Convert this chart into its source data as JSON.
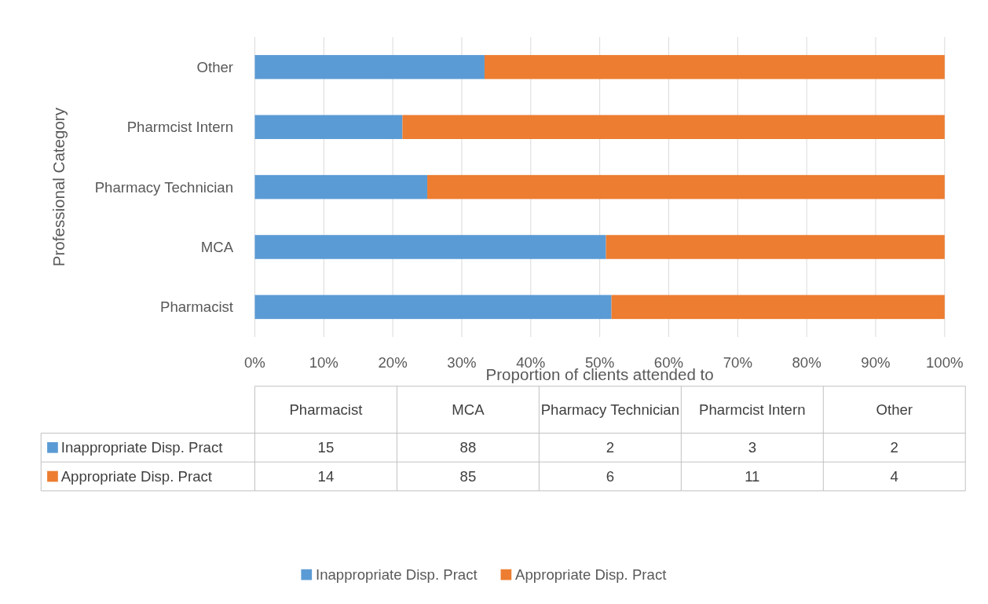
{
  "chart_data": [
    {
      "type": "bar",
      "orientation": "horizontal",
      "stacked": true,
      "ylabel": "Professional Category",
      "xlabel": "Proportion of clients attended to",
      "categories": [
        "Other",
        "Pharmcist Intern",
        "Pharmacy Technician",
        "MCA",
        "Pharmacist"
      ],
      "series": [
        {
          "name": "Inappropriate Disp. Pract",
          "color": "#5b9bd5",
          "values": [
            33.3,
            21.4,
            25,
            50.9,
            51.7
          ]
        },
        {
          "name": "Appropriate Disp. Pract",
          "color": "#ed7d31",
          "values": [
            66.7,
            78.6,
            75,
            49.1,
            48.3
          ]
        }
      ],
      "xlim": [
        0,
        100
      ],
      "xticks": [
        {
          "value": 0,
          "label": "0%"
        },
        {
          "value": 10,
          "label": "10%"
        },
        {
          "value": 20,
          "label": "20%"
        },
        {
          "value": 30,
          "label": "30%"
        },
        {
          "value": 40,
          "label": "40%"
        },
        {
          "value": 50,
          "label": "50%"
        },
        {
          "value": 60,
          "label": "60%"
        },
        {
          "value": 70,
          "label": "70%"
        },
        {
          "value": 80,
          "label": "80%"
        },
        {
          "value": 90,
          "label": "90%"
        },
        {
          "value": 100,
          "label": "100%"
        }
      ],
      "grid": "x",
      "legend": "bottom"
    },
    {
      "type": "other",
      "categories": [
        "Pharmacist",
        "MCA",
        "Pharmacy Technician",
        "Pharmcist Intern",
        "Other"
      ],
      "series": [
        {
          "name": "Inappropriate Disp. Pract",
          "color": "#5b9bd5",
          "values": [
            15,
            88,
            2,
            3,
            2
          ]
        },
        {
          "name": "Appropriate Disp. Pract",
          "color": "#ed7d31",
          "values": [
            14,
            85,
            6,
            11,
            4
          ]
        }
      ],
      "data_labels": true
    }
  ]
}
